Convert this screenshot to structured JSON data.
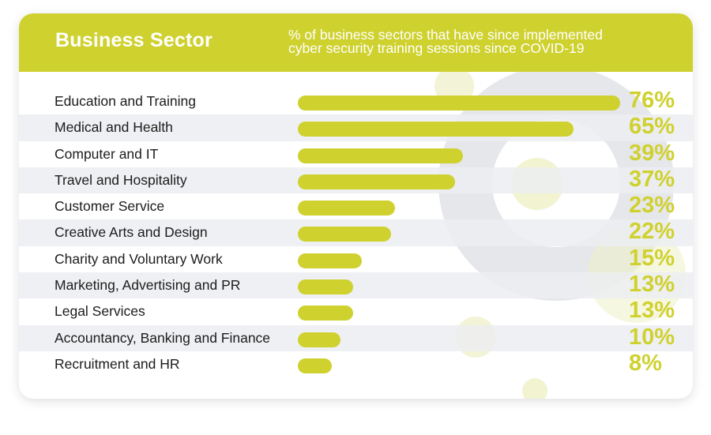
{
  "header": {
    "title": "Business Sector",
    "subtitle_line1": "% of business sectors that have since implemented",
    "subtitle_line2": "cyber security training sessions since COVID-19"
  },
  "colors": {
    "accent": "#cfd12f",
    "row_alt": "#ecedf1",
    "text": "#1c1c1c",
    "deco_gray": "#e6e7eb",
    "deco_yellow": "#eef0c6"
  },
  "chart_data": {
    "type": "bar",
    "orientation": "horizontal",
    "title": "Business Sector",
    "subtitle": "% of business sectors that have since implemented cyber security training sessions since COVID-19",
    "categories": [
      "Education and Training",
      "Medical and Health",
      "Computer and IT",
      "Travel and Hospitality",
      "Customer Service",
      "Creative Arts and Design",
      "Charity and Voluntary Work",
      "Marketing, Advertising and PR",
      "Legal Services",
      "Accountancy, Banking and Finance",
      "Recruitment and HR"
    ],
    "values": [
      76,
      65,
      39,
      37,
      23,
      22,
      15,
      13,
      13,
      10,
      8
    ],
    "labels": [
      "76%",
      "65%",
      "39%",
      "37%",
      "23%",
      "22%",
      "15%",
      "13%",
      "13%",
      "10%",
      "8%"
    ],
    "xlim": [
      0,
      76
    ],
    "grid": false
  }
}
